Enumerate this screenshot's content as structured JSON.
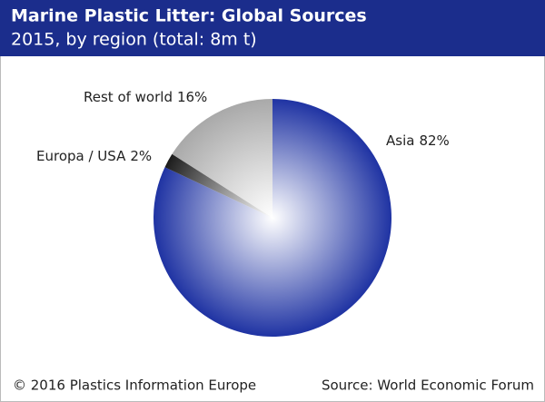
{
  "chart_data": {
    "type": "pie",
    "title": "Marine Plastic Litter: Global Sources",
    "subtitle": "2015, by region (total: 8m t)",
    "categories": [
      "Asia",
      "Europa / USA",
      "Rest of world"
    ],
    "values": [
      82,
      2,
      16
    ],
    "value_labels": [
      "82%",
      "2%",
      "16%"
    ],
    "colors": [
      "#1f33a3",
      "#1c1c1c",
      "#a9a9a9"
    ],
    "copyright": "© 2016 Plastics Information Europe",
    "source": "Source: World Economic Forum"
  }
}
